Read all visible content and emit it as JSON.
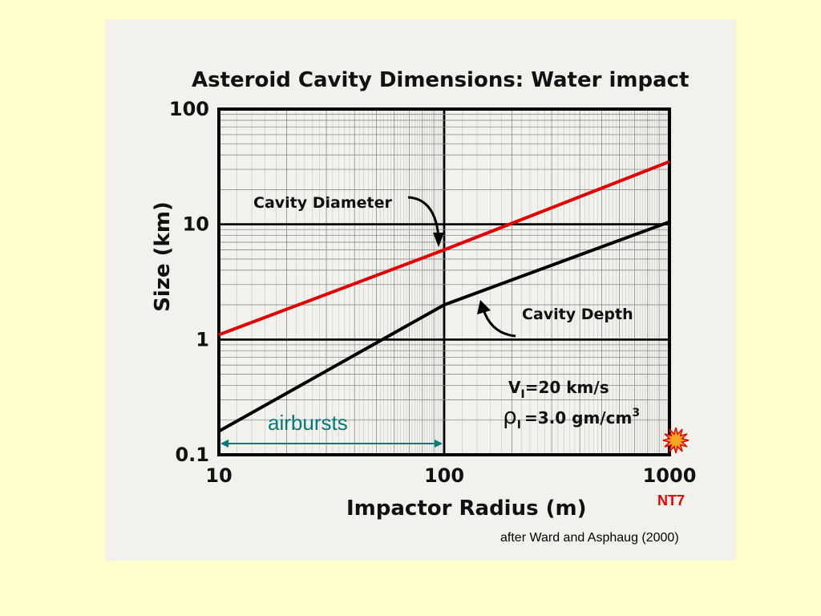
{
  "colors": {
    "background": "#ffffcc",
    "scan": "#f3f1ec",
    "diameter_line": "#e00000",
    "depth_line": "#000000",
    "airbursts": "#007a7a",
    "nt7": "#ee0000",
    "burst_fill": "#f5a623"
  },
  "chart_data": {
    "type": "line",
    "title": "Asteroid Cavity Dimensions: Water impact",
    "xlabel": "Impactor Radius (m)",
    "ylabel": "Size (km)",
    "xscale": "log",
    "yscale": "log",
    "xlim": [
      10,
      1000
    ],
    "ylim": [
      0.1,
      100
    ],
    "x_ticks": [
      "10",
      "100",
      "1000"
    ],
    "y_ticks": [
      "100",
      "10",
      "1",
      "0.1"
    ],
    "grid": true,
    "series": [
      {
        "name": "Cavity Diameter",
        "x": [
          10,
          100,
          1000
        ],
        "y": [
          1.1,
          6.0,
          35.0
        ]
      },
      {
        "name": "Cavity Depth",
        "x": [
          10,
          100,
          1000
        ],
        "y": [
          0.16,
          2.0,
          10.5
        ]
      }
    ],
    "annotations": {
      "velocity": "V =20 km/s",
      "velocity_symbol": "V",
      "velocity_sub": "I",
      "velocity_value": "=20 km/s",
      "density_symbol": "ρ",
      "density_sub": "I",
      "density_value": "=3.0 gm/cm",
      "density_exp": "3",
      "airbursts_label": "airbursts",
      "airbursts_range": [
        10,
        100
      ]
    }
  },
  "nt7_label": "NT7",
  "credit": "after Ward and Asphaug (2000)"
}
